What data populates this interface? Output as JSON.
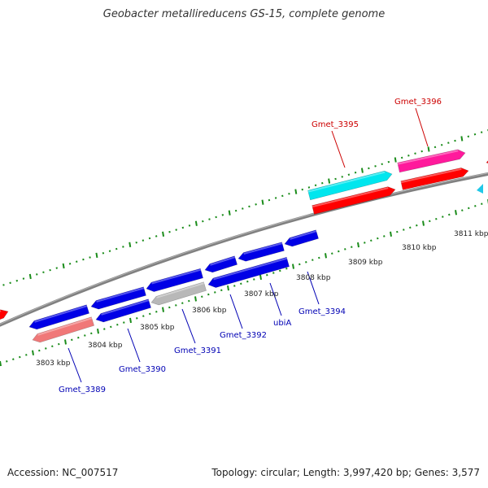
{
  "title": "Geobacter metallireducens GS-15, complete genome",
  "footer": {
    "accession": "Accession: NC_007517",
    "summary": "Topology: circular; Length: 3,997,420 bp; Genes: 3,577"
  },
  "colors": {
    "forward_gene": "#ff0000",
    "forward_gene_alt": "#ff1a9c",
    "forward_gene_cyan": "#00e6ee",
    "reverse_gene": "#0000e6",
    "reverse_gene_pink": "#f07878",
    "reverse_gene_gray": "#b8b8b8",
    "backbone": "#808080",
    "tick": "#1a8c1a",
    "label_forward": "#cc0000",
    "label_reverse": "#0000b4"
  },
  "kbp_labels": [
    "3803 kbp",
    "3804 kbp",
    "3805 kbp",
    "3806 kbp",
    "3807 kbp",
    "3808 kbp",
    "3809 kbp",
    "3810 kbp",
    "3811 kbp"
  ],
  "genes": [
    {
      "label": "Gmet_3389",
      "strand": "reverse",
      "color": "reverse_gene_pink"
    },
    {
      "label": "Gmet_3390",
      "strand": "reverse",
      "color": "reverse_gene"
    },
    {
      "label": "Gmet_3391",
      "strand": "reverse",
      "color": "reverse_gene"
    },
    {
      "label": "Gmet_3392",
      "strand": "reverse",
      "color": "reverse_gene"
    },
    {
      "label": "ubiA",
      "strand": "reverse",
      "color": "reverse_gene"
    },
    {
      "label": "Gmet_3394",
      "strand": "reverse",
      "color": "reverse_gene"
    },
    {
      "label": "Gmet_3395",
      "strand": "forward",
      "color": "forward_gene_cyan"
    },
    {
      "label": "Gmet_3396",
      "strand": "forward",
      "color": "forward_gene_alt"
    }
  ]
}
